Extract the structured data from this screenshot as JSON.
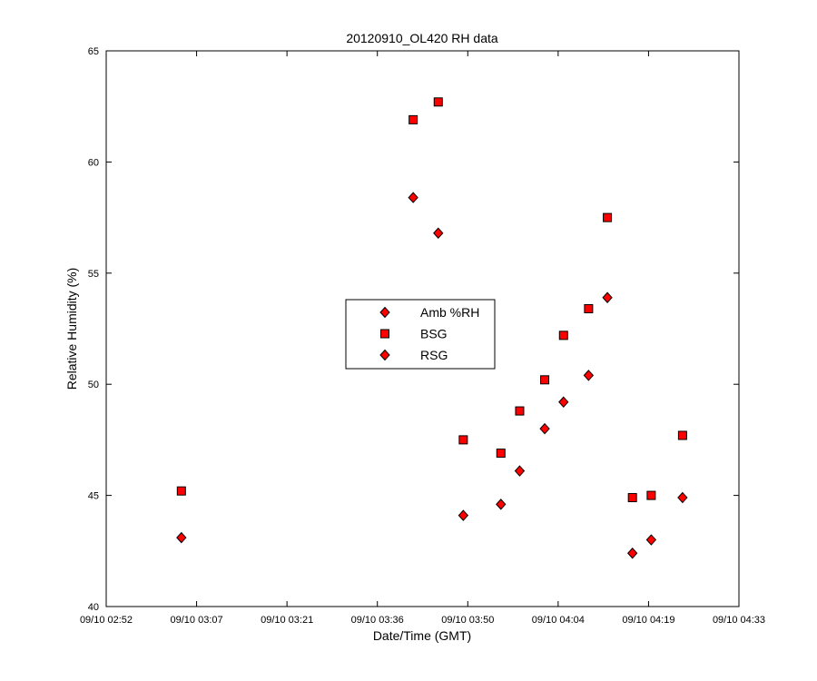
{
  "chart_data": {
    "type": "scatter",
    "title": "20120910_OL420 RH data",
    "xlabel": "Date/Time (GMT)",
    "ylabel": "Relative Humidity (%)",
    "x_axis": {
      "type": "time",
      "min": "09/10 02:52",
      "max": "09/10 04:33",
      "ticks": [
        "09/10 02:52",
        "09/10 03:07",
        "09/10 03:21",
        "09/10 03:36",
        "09/10 03:50",
        "09/10 04:04",
        "09/10 04:19",
        "09/10 04:33"
      ]
    },
    "ylim": [
      40,
      65
    ],
    "yticks": [
      40,
      45,
      50,
      55,
      60,
      65
    ],
    "grid": false,
    "legend_position": "center",
    "series": [
      {
        "name": "Amb %RH",
        "marker": "diamond",
        "color": "#ff0000",
        "points": []
      },
      {
        "name": "BSG",
        "marker": "square",
        "color": "#ff0000",
        "points": [
          {
            "x": "09/10 03:04",
            "y": 45.2
          },
          {
            "x": "09/10 03:41",
            "y": 61.9
          },
          {
            "x": "09/10 03:45",
            "y": 62.7
          },
          {
            "x": "09/10 03:49",
            "y": 47.5
          },
          {
            "x": "09/10 03:55",
            "y": 46.9
          },
          {
            "x": "09/10 03:58",
            "y": 48.8
          },
          {
            "x": "09/10 04:02",
            "y": 50.2
          },
          {
            "x": "09/10 04:05",
            "y": 52.2
          },
          {
            "x": "09/10 04:09",
            "y": 53.4
          },
          {
            "x": "09/10 04:12",
            "y": 57.5
          },
          {
            "x": "09/10 04:16",
            "y": 44.9
          },
          {
            "x": "09/10 04:19",
            "y": 45.0
          },
          {
            "x": "09/10 04:24",
            "y": 47.7
          }
        ]
      },
      {
        "name": "RSG",
        "marker": "diamond",
        "color": "#ff0000",
        "points": [
          {
            "x": "09/10 03:04",
            "y": 43.1
          },
          {
            "x": "09/10 03:41",
            "y": 58.4
          },
          {
            "x": "09/10 03:45",
            "y": 56.8
          },
          {
            "x": "09/10 03:49",
            "y": 44.1
          },
          {
            "x": "09/10 03:55",
            "y": 44.6
          },
          {
            "x": "09/10 03:58",
            "y": 46.1
          },
          {
            "x": "09/10 04:02",
            "y": 48.0
          },
          {
            "x": "09/10 04:05",
            "y": 49.2
          },
          {
            "x": "09/10 04:09",
            "y": 50.4
          },
          {
            "x": "09/10 04:12",
            "y": 53.9
          },
          {
            "x": "09/10 04:16",
            "y": 42.4
          },
          {
            "x": "09/10 04:19",
            "y": 43.0
          },
          {
            "x": "09/10 04:24",
            "y": 44.9
          }
        ]
      }
    ]
  }
}
